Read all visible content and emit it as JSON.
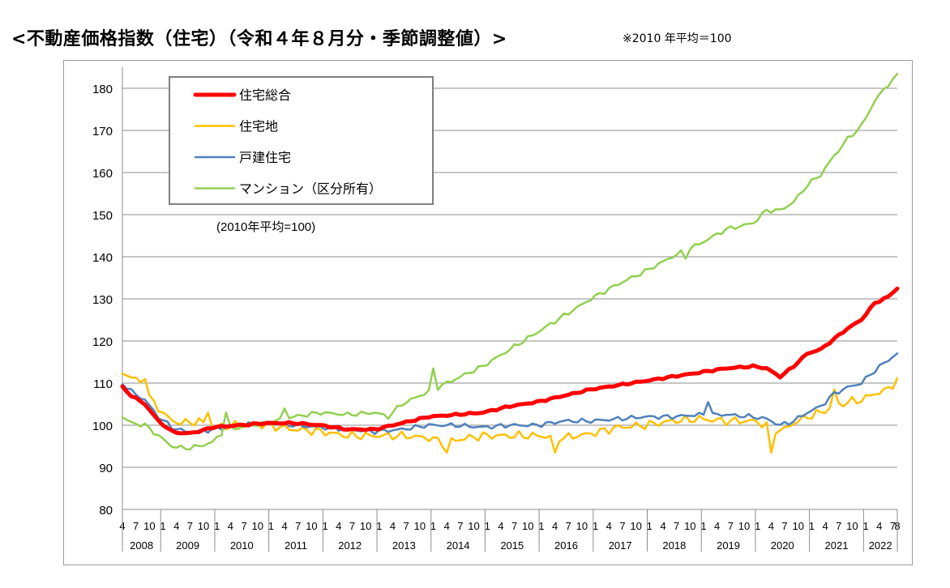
{
  "header": {
    "title": "<不動産価格指数（住宅）（令和４年８月分・季節調整値）>",
    "note": "※2010 年平均＝100"
  },
  "chart_data": {
    "type": "line",
    "title": "",
    "xlabel": "",
    "ylabel": "",
    "annotation": "(2010年平均=100)",
    "ylim": [
      80,
      185
    ],
    "yticks": [
      80,
      90,
      100,
      110,
      120,
      130,
      140,
      150,
      160,
      170,
      180
    ],
    "grid": true,
    "legend_position": "top-left",
    "x_start": "2008-04",
    "x_end": "2022-08",
    "month_tick_labels": [
      "1",
      "4",
      "7",
      "10"
    ],
    "last_month_label": "8",
    "years": [
      "2008",
      "2009",
      "2010",
      "2011",
      "2012",
      "2013",
      "2014",
      "2015",
      "2016",
      "2017",
      "2018",
      "2019",
      "2020",
      "2021",
      "2022"
    ],
    "series": [
      {
        "name": "住宅総合",
        "color": "#ff0000",
        "width": 5,
        "anchors": [
          [
            "2008-04",
            109
          ],
          [
            "2008-06",
            107
          ],
          [
            "2008-09",
            105
          ],
          [
            "2008-12",
            101
          ],
          [
            "2009-03",
            98.5
          ],
          [
            "2009-06",
            98
          ],
          [
            "2009-09",
            98.5
          ],
          [
            "2009-12",
            99.5
          ],
          [
            "2010-06",
            100
          ],
          [
            "2010-12",
            100.5
          ],
          [
            "2011-06",
            100.5
          ],
          [
            "2011-12",
            100
          ],
          [
            "2012-06",
            99
          ],
          [
            "2012-12",
            99
          ],
          [
            "2013-06",
            100.5
          ],
          [
            "2013-12",
            102
          ],
          [
            "2014-06",
            102.5
          ],
          [
            "2014-12",
            103
          ],
          [
            "2015-06",
            104.5
          ],
          [
            "2015-12",
            105.5
          ],
          [
            "2016-06",
            107
          ],
          [
            "2016-12",
            108.5
          ],
          [
            "2017-06",
            109.5
          ],
          [
            "2017-12",
            110.5
          ],
          [
            "2018-06",
            111.5
          ],
          [
            "2018-12",
            112.5
          ],
          [
            "2019-06",
            113.5
          ],
          [
            "2019-12",
            114
          ],
          [
            "2020-03",
            113.5
          ],
          [
            "2020-06",
            111.5
          ],
          [
            "2020-09",
            114
          ],
          [
            "2020-12",
            117
          ],
          [
            "2021-03",
            118
          ],
          [
            "2021-06",
            120.5
          ],
          [
            "2021-09",
            123
          ],
          [
            "2021-12",
            125
          ],
          [
            "2022-03",
            129
          ],
          [
            "2022-06",
            130.5
          ],
          [
            "2022-08",
            132.5
          ]
        ]
      },
      {
        "name": "住宅地",
        "color": "#ffc000",
        "width": 2.5,
        "anchors": [
          [
            "2008-04",
            112.5
          ],
          [
            "2008-06",
            111.5
          ],
          [
            "2008-08",
            110
          ],
          [
            "2008-10",
            106.5
          ],
          [
            "2008-12",
            104
          ],
          [
            "2009-03",
            101
          ],
          [
            "2009-06",
            100.5
          ],
          [
            "2009-09",
            101
          ],
          [
            "2009-12",
            99.5
          ],
          [
            "2010-06",
            100
          ],
          [
            "2010-12",
            100
          ],
          [
            "2011-06",
            99
          ],
          [
            "2011-12",
            98.5
          ],
          [
            "2012-06",
            97.5
          ],
          [
            "2012-12",
            97.5
          ],
          [
            "2013-06",
            97.5
          ],
          [
            "2013-12",
            97
          ],
          [
            "2014-03",
            96
          ],
          [
            "2014-06",
            96.5
          ],
          [
            "2014-12",
            97.5
          ],
          [
            "2015-06",
            97.5
          ],
          [
            "2015-12",
            97.5
          ],
          [
            "2016-06",
            97
          ],
          [
            "2016-12",
            98
          ],
          [
            "2017-06",
            99.5
          ],
          [
            "2017-12",
            100
          ],
          [
            "2018-06",
            101
          ],
          [
            "2018-12",
            101.5
          ],
          [
            "2019-06",
            101
          ],
          [
            "2019-12",
            101
          ],
          [
            "2020-03",
            100
          ],
          [
            "2020-06",
            98.5
          ],
          [
            "2020-09",
            100.5
          ],
          [
            "2020-12",
            102
          ],
          [
            "2021-03",
            103
          ],
          [
            "2021-06",
            104.5
          ],
          [
            "2021-09",
            105.5
          ],
          [
            "2021-12",
            106
          ],
          [
            "2022-03",
            107.5
          ],
          [
            "2022-06",
            108.5
          ],
          [
            "2022-08",
            111
          ]
        ],
        "spikes": [
          [
            "2008-09",
            111
          ],
          [
            "2009-11",
            103
          ],
          [
            "2014-04",
            93.5
          ],
          [
            "2016-04",
            93.5
          ],
          [
            "2020-04",
            93.5
          ],
          [
            "2021-06",
            108.5
          ]
        ]
      },
      {
        "name": "戸建住宅",
        "color": "#4f81bd",
        "width": 2.5,
        "anchors": [
          [
            "2008-04",
            110
          ],
          [
            "2008-06",
            108
          ],
          [
            "2008-09",
            106
          ],
          [
            "2008-12",
            102
          ],
          [
            "2009-03",
            99.5
          ],
          [
            "2009-06",
            98.5
          ],
          [
            "2009-09",
            98.5
          ],
          [
            "2009-12",
            99
          ],
          [
            "2010-06",
            100
          ],
          [
            "2010-12",
            100.5
          ],
          [
            "2011-06",
            100
          ],
          [
            "2011-12",
            99.5
          ],
          [
            "2012-06",
            99
          ],
          [
            "2012-12",
            98.5
          ],
          [
            "2013-06",
            99
          ],
          [
            "2013-12",
            100
          ],
          [
            "2014-06",
            100
          ],
          [
            "2014-12",
            99.5
          ],
          [
            "2015-06",
            100
          ],
          [
            "2015-12",
            100
          ],
          [
            "2016-06",
            101
          ],
          [
            "2016-12",
            101
          ],
          [
            "2017-06",
            101.5
          ],
          [
            "2017-12",
            102
          ],
          [
            "2018-06",
            102
          ],
          [
            "2018-12",
            102.5
          ],
          [
            "2019-06",
            102.5
          ],
          [
            "2019-12",
            102
          ],
          [
            "2020-03",
            101.5
          ],
          [
            "2020-06",
            100
          ],
          [
            "2020-09",
            101
          ],
          [
            "2020-12",
            103
          ],
          [
            "2021-03",
            104.5
          ],
          [
            "2021-06",
            107.5
          ],
          [
            "2021-09",
            109
          ],
          [
            "2021-12",
            110
          ],
          [
            "2022-03",
            113
          ],
          [
            "2022-06",
            115.5
          ],
          [
            "2022-08",
            117
          ]
        ],
        "spikes": [
          [
            "2019-02",
            105.5
          ]
        ]
      },
      {
        "name": "マンション（区分所有）",
        "color": "#92d050",
        "width": 2.5,
        "anchors": [
          [
            "2008-04",
            102
          ],
          [
            "2008-06",
            100.5
          ],
          [
            "2008-09",
            100
          ],
          [
            "2008-12",
            97.5
          ],
          [
            "2009-03",
            95
          ],
          [
            "2009-06",
            94.5
          ],
          [
            "2009-09",
            95
          ],
          [
            "2009-12",
            96
          ],
          [
            "2010-03",
            99
          ],
          [
            "2010-06",
            99.5
          ],
          [
            "2010-12",
            100.5
          ],
          [
            "2011-06",
            102
          ],
          [
            "2011-12",
            103
          ],
          [
            "2012-06",
            102.5
          ],
          [
            "2012-12",
            103
          ],
          [
            "2013-03",
            102
          ],
          [
            "2013-06",
            105
          ],
          [
            "2013-12",
            108
          ],
          [
            "2014-06",
            111
          ],
          [
            "2014-12",
            114
          ],
          [
            "2015-06",
            118
          ],
          [
            "2015-12",
            122
          ],
          [
            "2016-06",
            126
          ],
          [
            "2016-12",
            130
          ],
          [
            "2017-06",
            133.5
          ],
          [
            "2017-12",
            136.5
          ],
          [
            "2018-06",
            140
          ],
          [
            "2018-12",
            143
          ],
          [
            "2019-06",
            146.5
          ],
          [
            "2019-12",
            148
          ],
          [
            "2020-03",
            151
          ],
          [
            "2020-06",
            151
          ],
          [
            "2020-09",
            153
          ],
          [
            "2020-12",
            157
          ],
          [
            "2021-03",
            159.5
          ],
          [
            "2021-06",
            164
          ],
          [
            "2021-09",
            168
          ],
          [
            "2021-12",
            171
          ],
          [
            "2022-03",
            177
          ],
          [
            "2022-06",
            181
          ],
          [
            "2022-08",
            183
          ]
        ],
        "spikes": [
          [
            "2010-03",
            103
          ],
          [
            "2011-04",
            104
          ],
          [
            "2014-01",
            113.5
          ],
          [
            "2018-09",
            139.5
          ]
        ]
      }
    ]
  }
}
